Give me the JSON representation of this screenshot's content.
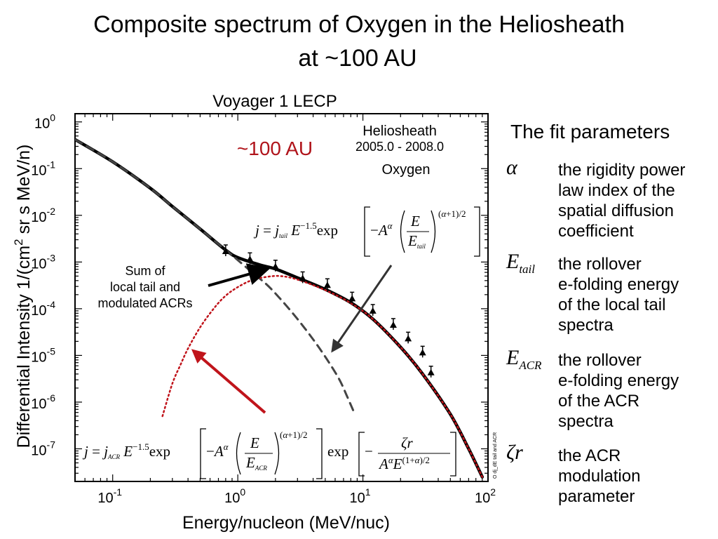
{
  "slide": {
    "title_line1": "Composite spectrum of Oxygen in the Heliosheath",
    "title_line2": "at ~100 AU"
  },
  "params": {
    "heading": "The fit parameters",
    "items": [
      {
        "symbol": "α",
        "desc": [
          "the rigidity power",
          "law index of the",
          "spatial diffusion",
          "coefficient"
        ]
      },
      {
        "symbol": "E",
        "sub": "tail",
        "desc": [
          "the rollover",
          "e-folding energy",
          "of the local tail",
          "spectra"
        ]
      },
      {
        "symbol": "E",
        "sub": "ACR",
        "desc": [
          "the rollover",
          "e-folding energy",
          "of the ACR",
          "spectra"
        ]
      },
      {
        "symbol": "ζr",
        "desc": [
          "the ACR",
          "modulation",
          "parameter"
        ]
      }
    ]
  },
  "chart_data": {
    "type": "line",
    "title": "Voyager 1 LECP",
    "xlabel": "Energy/nucleon (MeV/nuc)",
    "ylabel": "Differential Intensity 1/(cm² sr s MeV/n)",
    "xscale": "log",
    "yscale": "log",
    "xlim": [
      0.05,
      100
    ],
    "ylim": [
      2e-08,
      1.5
    ],
    "xticks": [
      {
        "v": 0.1,
        "exp": "-1"
      },
      {
        "v": 1,
        "exp": "0"
      },
      {
        "v": 10,
        "exp": "1"
      },
      {
        "v": 100,
        "exp": "2"
      }
    ],
    "yticks": [
      {
        "v": 1,
        "exp": "0"
      },
      {
        "v": 0.1,
        "exp": "-1"
      },
      {
        "v": 0.01,
        "exp": "-2"
      },
      {
        "v": 0.001,
        "exp": "-3"
      },
      {
        "v": 0.0001,
        "exp": "-4"
      },
      {
        "v": 1e-05,
        "exp": "-5"
      },
      {
        "v": 1e-06,
        "exp": "-6"
      },
      {
        "v": 1e-07,
        "exp": "-7"
      }
    ],
    "tick_base": "10",
    "annotations": {
      "distance": "~100 AU",
      "region_line1": "Heliosheath",
      "region_line2": "2005.0 - 2008.0",
      "species": "Oxygen",
      "sum_label": [
        "Sum of",
        "local tail and",
        "modulated ACRs"
      ],
      "side_note": "O dj_dE tail and ACR"
    },
    "series": [
      {
        "style": "solid-black",
        "x": [
          0.05,
          0.1,
          0.2,
          0.3,
          0.5,
          0.8,
          1.0,
          1.5,
          2.0,
          3.0,
          5.0,
          8.0,
          12.0,
          20.0,
          30.0,
          50.0,
          70.0,
          90.0
        ],
        "y": [
          0.42,
          0.14,
          0.038,
          0.0155,
          0.0051,
          0.0018,
          0.00125,
          0.00087,
          0.00071,
          0.00046,
          0.00026,
          0.000135,
          6e-05,
          1.5e-05,
          4e-06,
          5.5e-07,
          1e-07,
          2.5e-08
        ]
      },
      {
        "style": "dashed-gray",
        "x": [
          0.05,
          0.1,
          0.2,
          0.3,
          0.5,
          0.8,
          1.0,
          1.3,
          1.7,
          2.2,
          3.0,
          4.0,
          5.2,
          6.5,
          7.5,
          8.5
        ],
        "y": [
          0.42,
          0.14,
          0.038,
          0.0155,
          0.0051,
          0.0018,
          0.0011,
          0.0006,
          0.00033,
          0.00016,
          6e-05,
          2.2e-05,
          8e-06,
          3e-06,
          1.3e-06,
          6e-07
        ]
      },
      {
        "style": "dotted-red",
        "x": [
          0.25,
          0.3,
          0.35,
          0.4,
          0.5,
          0.65,
          0.8,
          1.0,
          1.3,
          1.7,
          2.2,
          3.0,
          5.0,
          8.0,
          12.0,
          20.0,
          30.0,
          50.0,
          70.0,
          90.0
        ],
        "y": [
          5e-07,
          2.5e-06,
          6.5e-06,
          1.4e-05,
          4e-05,
          0.000105,
          0.00019,
          0.00029,
          0.00041,
          0.00048,
          0.0005,
          0.00042,
          0.00025,
          0.000132,
          6e-05,
          1.5e-05,
          4e-06,
          5.5e-07,
          1e-07,
          2.5e-08
        ]
      }
    ],
    "data_points": [
      {
        "x": 0.8,
        "y": 0.0017
      },
      {
        "x": 1.25,
        "y": 0.00115
      },
      {
        "x": 2.0,
        "y": 0.0008
      },
      {
        "x": 3.3,
        "y": 0.00045
      },
      {
        "x": 5.2,
        "y": 0.00032
      },
      {
        "x": 8.2,
        "y": 0.000165
      },
      {
        "x": 12.0,
        "y": 9e-05
      },
      {
        "x": 17.5,
        "y": 4.5e-05
      },
      {
        "x": 23.0,
        "y": 2.3e-05
      },
      {
        "x": 30.0,
        "y": 1.15e-05
      },
      {
        "x": 35.0,
        "y": 4.3e-06
      }
    ],
    "colors": {
      "distance_label": "#b0141b",
      "arrow_red": "#c0141b",
      "dotted": "#c0141b",
      "dashed": "#444444"
    }
  }
}
